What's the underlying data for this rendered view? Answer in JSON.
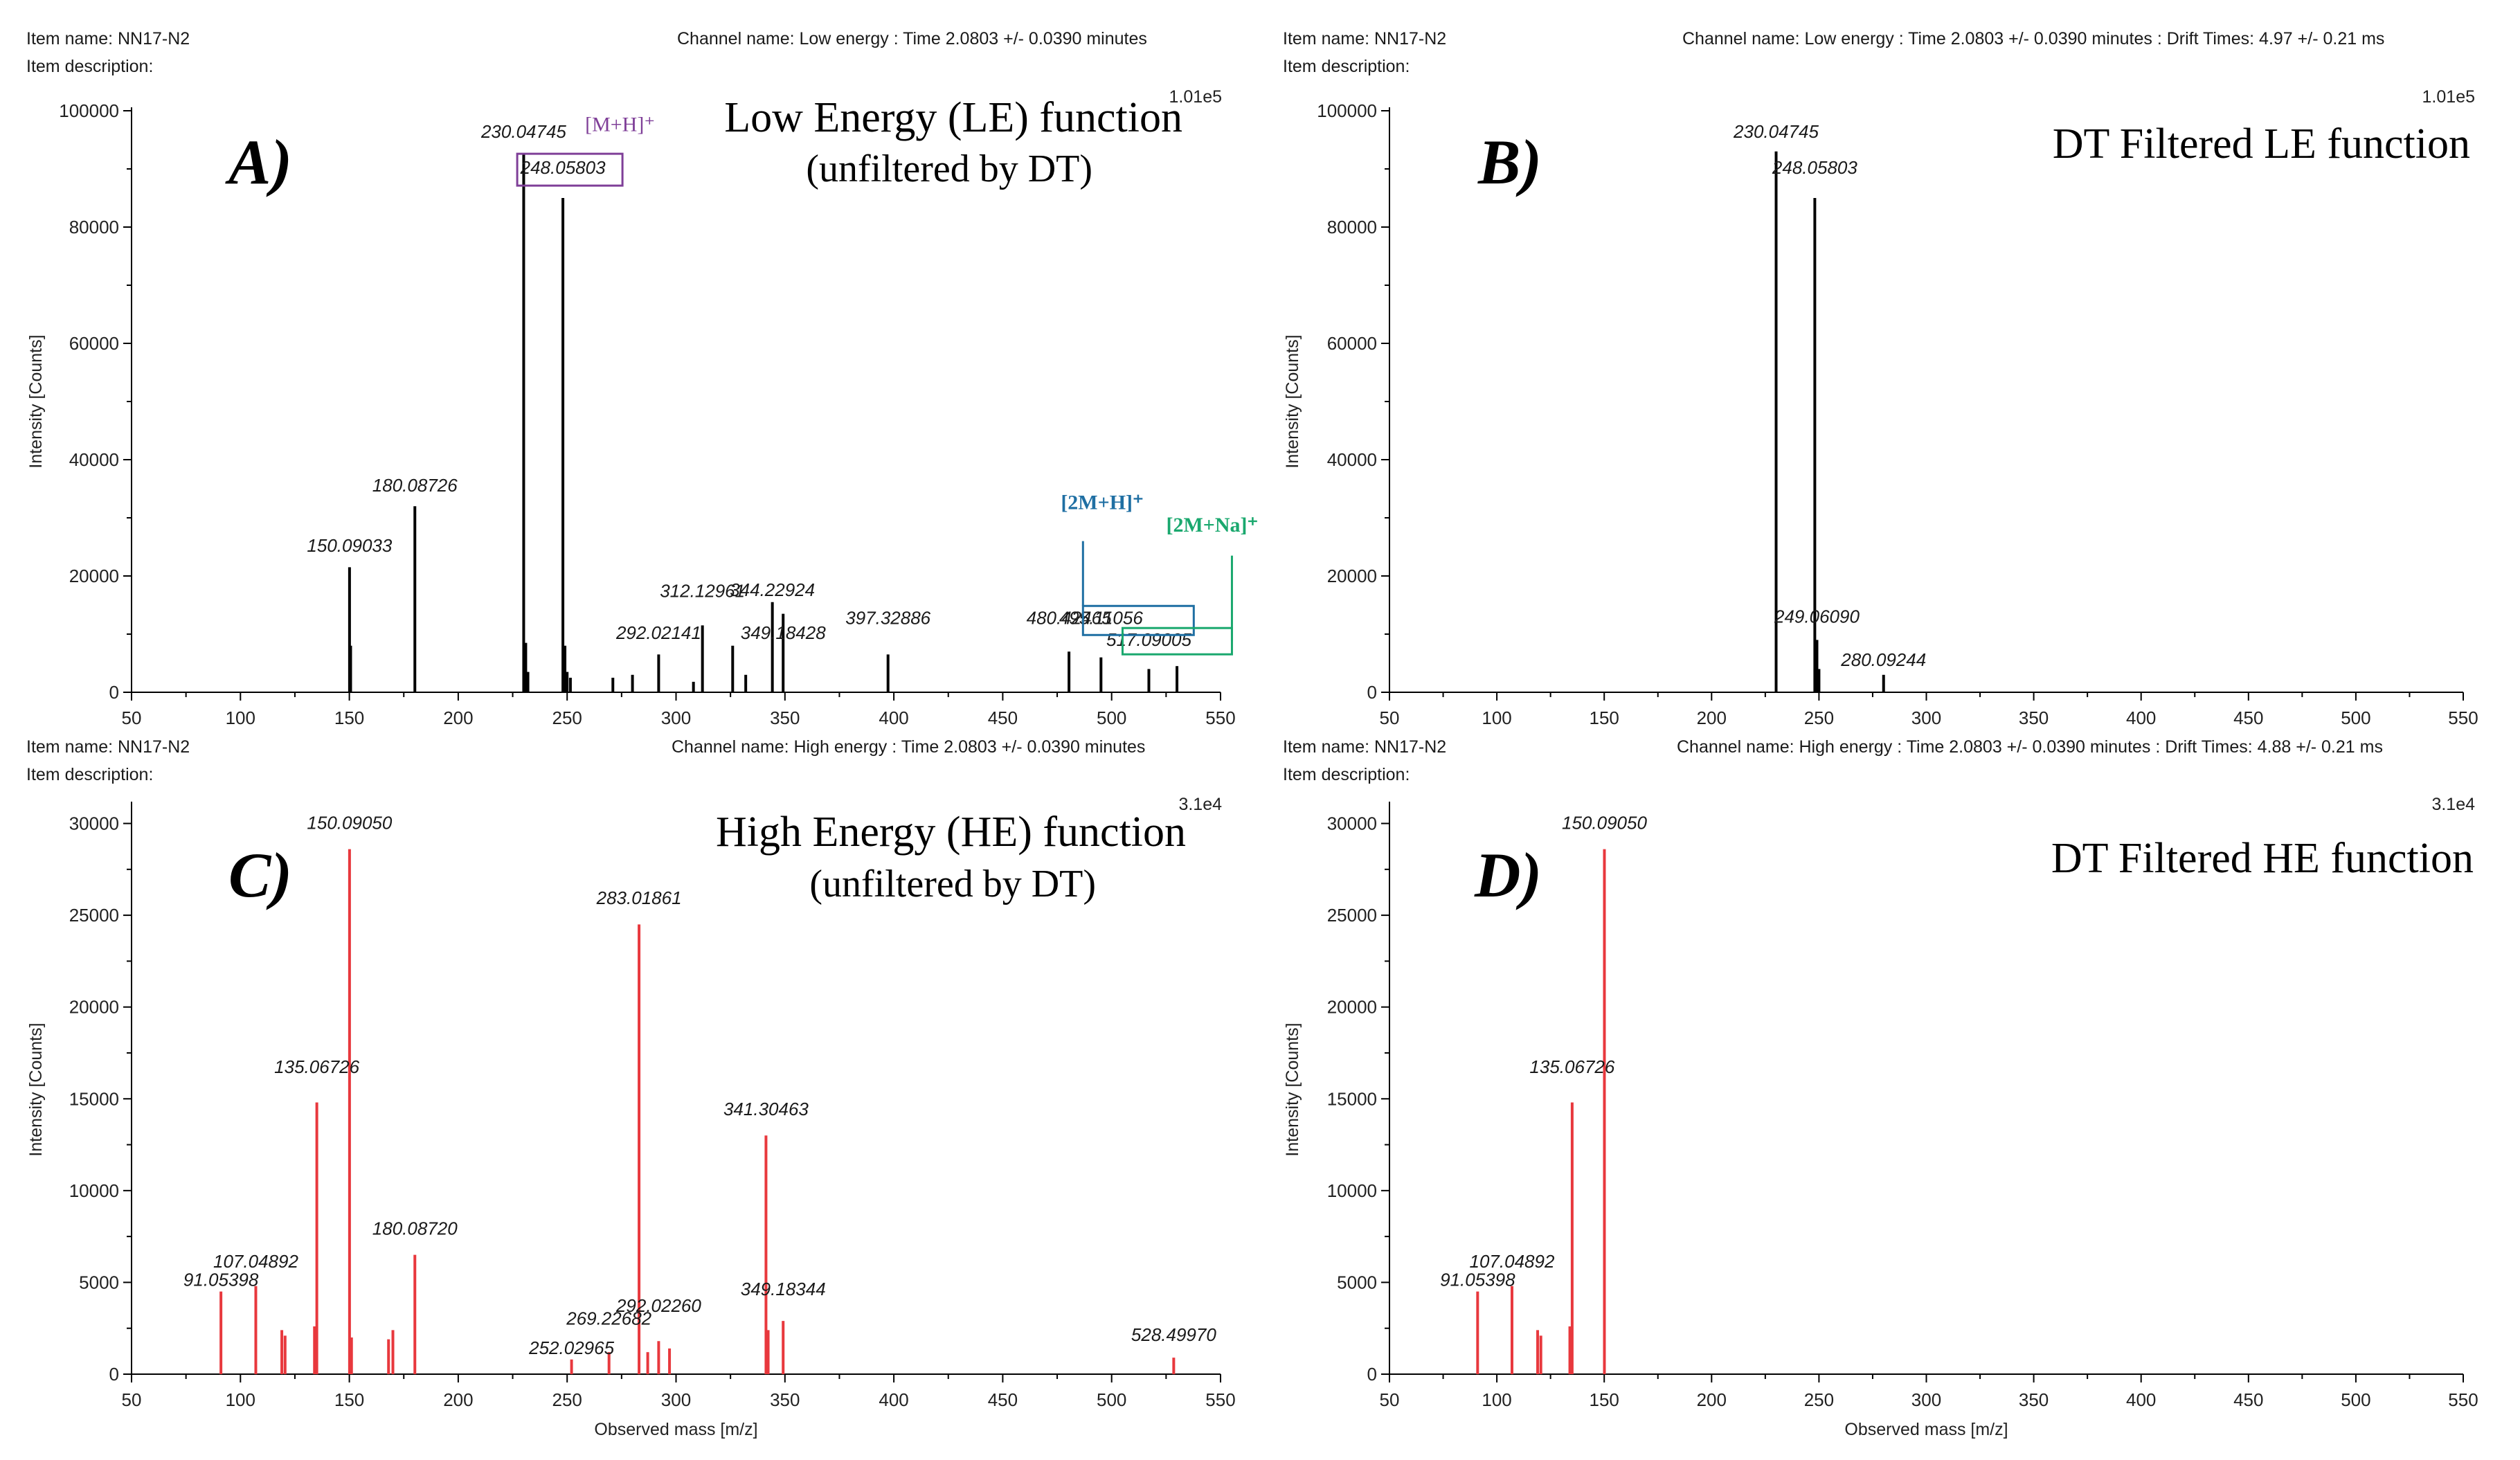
{
  "chart_data": [
    {
      "id": "A",
      "type": "bar",
      "panel_letter": "A)",
      "item_name": "Item name: NN17-N2",
      "item_description": "Item description:",
      "channel": "Channel name: Low energy : Time 2.0803 +/- 0.0390 minutes",
      "scale": "1.01e5",
      "title_line1": "Low Energy (LE) function",
      "title_line2": "(unfiltered by DT)",
      "ylabel": "Intensity [Counts]",
      "xlabel": "",
      "xlim": [
        50,
        550
      ],
      "ylim": [
        0,
        100000
      ],
      "xticks": [
        50,
        100,
        150,
        200,
        250,
        300,
        350,
        400,
        450,
        500,
        550
      ],
      "yticks": [
        0,
        20000,
        40000,
        60000,
        80000,
        100000
      ],
      "ytick_labels": [
        "0",
        "20000",
        "40000",
        "60000",
        "80000",
        "100000"
      ],
      "color": "#000000",
      "peaks": [
        [
          150.09,
          21500
        ],
        [
          150.6,
          8000
        ],
        [
          180.09,
          32000
        ],
        [
          230.05,
          92500
        ],
        [
          231.0,
          8500
        ],
        [
          232.0,
          3500
        ],
        [
          248.06,
          85000
        ],
        [
          249.0,
          8000
        ],
        [
          250.0,
          3500
        ],
        [
          251.5,
          2500
        ],
        [
          271,
          2500
        ],
        [
          280,
          3000
        ],
        [
          292.02,
          6500
        ],
        [
          308,
          1800
        ],
        [
          312.13,
          11500
        ],
        [
          326,
          8000
        ],
        [
          332,
          3000
        ],
        [
          344.23,
          15500
        ],
        [
          349.18,
          13500
        ],
        [
          397.33,
          6500
        ],
        [
          480.42,
          7000
        ],
        [
          495.11,
          6000
        ],
        [
          517.09,
          4000
        ],
        [
          530,
          4500
        ]
      ],
      "labels": [
        {
          "mz": 150.09,
          "text": "150.09033",
          "y": 23200
        },
        {
          "mz": 180.09,
          "text": "180.08726",
          "y": 33600
        },
        {
          "mz": 230.05,
          "text": "230.04745",
          "y": 94400
        },
        {
          "mz": 248.06,
          "text": "248.05803",
          "y": 88200
        },
        {
          "mz": 292.02,
          "text": "292.02141",
          "y": 8200
        },
        {
          "mz": 312.13,
          "text": "312.12961",
          "y": 15400
        },
        {
          "mz": 344.23,
          "text": "344.22924",
          "y": 15600
        },
        {
          "mz": 349.18,
          "text": "349.18428",
          "y": 8200
        },
        {
          "mz": 397.33,
          "text": "397.32886",
          "y": 10800
        },
        {
          "mz": 480.42,
          "text": "480.42465",
          "y": 10800
        },
        {
          "mz": 495.11,
          "text": "495.11056",
          "y": 10800
        },
        {
          "mz": 517.09,
          "text": "517.09005",
          "y": 7000
        }
      ],
      "annotations": [
        {
          "text": "[M+H]⁺",
          "color": "#7f3f98"
        },
        {
          "text": "[2M+H]⁺",
          "color": "#1f6fa3"
        },
        {
          "text": "[2M+Na]⁺",
          "color": "#1aa86e"
        }
      ]
    },
    {
      "id": "B",
      "type": "bar",
      "panel_letter": "B)",
      "item_name": "Item name: NN17-N2",
      "item_description": "Item description:",
      "channel": "Channel name: Low energy : Time 2.0803 +/- 0.0390 minutes : Drift Times: 4.97 +/- 0.21 ms",
      "scale": "1.01e5",
      "title_line1": "DT Filtered LE function",
      "title_line2": "",
      "ylabel": "Intensity [Counts]",
      "xlabel": "",
      "xlim": [
        50,
        550
      ],
      "ylim": [
        0,
        100000
      ],
      "xticks": [
        50,
        100,
        150,
        200,
        250,
        300,
        350,
        400,
        450,
        500,
        550
      ],
      "yticks": [
        0,
        20000,
        40000,
        60000,
        80000,
        100000
      ],
      "ytick_labels": [
        "0",
        "20000",
        "40000",
        "60000",
        "80000",
        "100000"
      ],
      "color": "#000000",
      "peaks": [
        [
          230.05,
          93000
        ],
        [
          248.06,
          85000
        ],
        [
          249.06,
          9000
        ],
        [
          250.0,
          4000
        ],
        [
          280.09,
          3000
        ]
      ],
      "labels": [
        {
          "mz": 230.05,
          "text": "230.04745",
          "y": 94400
        },
        {
          "mz": 248.06,
          "text": "248.05803",
          "y": 88200
        },
        {
          "mz": 249.06,
          "text": "249.06090",
          "y": 11000
        },
        {
          "mz": 280.09,
          "text": "280.09244",
          "y": 3600
        }
      ],
      "annotations": []
    },
    {
      "id": "C",
      "type": "bar",
      "panel_letter": "C)",
      "item_name": "Item name: NN17-N2",
      "item_description": "Item description:",
      "channel": "Channel name: High energy : Time 2.0803 +/- 0.0390 minutes",
      "scale": "3.1e4",
      "title_line1": "High Energy (HE) function",
      "title_line2": "(unfiltered by DT)",
      "ylabel": "Intensity [Counts]",
      "xlabel": "Observed mass [m/z]",
      "xlim": [
        50,
        550
      ],
      "ylim": [
        0,
        31000
      ],
      "xticks": [
        50,
        100,
        150,
        200,
        250,
        300,
        350,
        400,
        450,
        500,
        550
      ],
      "yticks": [
        0,
        5000,
        10000,
        15000,
        20000,
        25000,
        30000
      ],
      "ytick_labels": [
        "0",
        "5000",
        "10000",
        "15000",
        "20000",
        "25000",
        "30000"
      ],
      "color": "#e8383d",
      "peaks": [
        [
          91.05,
          4500
        ],
        [
          107.05,
          4800
        ],
        [
          119,
          2400
        ],
        [
          120.5,
          2100
        ],
        [
          134,
          2600
        ],
        [
          135.07,
          14800
        ],
        [
          150.09,
          28600
        ],
        [
          151,
          2000
        ],
        [
          168,
          1900
        ],
        [
          170,
          2400
        ],
        [
          180.09,
          6500
        ],
        [
          252.03,
          800
        ],
        [
          269.23,
          1200
        ],
        [
          283.02,
          24500
        ],
        [
          287,
          1200
        ],
        [
          292.02,
          1800
        ],
        [
          297,
          1400
        ],
        [
          341.3,
          13000
        ],
        [
          342.3,
          2400
        ],
        [
          349.18,
          2900
        ],
        [
          528.5,
          900
        ]
      ],
      "labels": [
        {
          "mz": 91.05,
          "text": "91.05398",
          "y": 4500
        },
        {
          "mz": 107.05,
          "text": "107.04892",
          "y": 5500
        },
        {
          "mz": 135.07,
          "text": "135.06726",
          "y": 16100
        },
        {
          "mz": 150.09,
          "text": "150.09050",
          "y": 29400
        },
        {
          "mz": 180.09,
          "text": "180.08720",
          "y": 7300
        },
        {
          "mz": 252.03,
          "text": "252.02965",
          "y": 800
        },
        {
          "mz": 269.23,
          "text": "269.22682",
          "y": 2400
        },
        {
          "mz": 283.02,
          "text": "283.01861",
          "y": 25300
        },
        {
          "mz": 292.02,
          "text": "292.02260",
          "y": 3100
        },
        {
          "mz": 341.3,
          "text": "341.30463",
          "y": 13800
        },
        {
          "mz": 349.18,
          "text": "349.18344",
          "y": 4000
        },
        {
          "mz": 528.5,
          "text": "528.49970",
          "y": 1500
        }
      ],
      "annotations": []
    },
    {
      "id": "D",
      "type": "bar",
      "panel_letter": "D)",
      "item_name": "Item name: NN17-N2",
      "item_description": "Item description:",
      "channel": "Channel name: High energy : Time 2.0803 +/- 0.0390 minutes : Drift Times: 4.88 +/- 0.21 ms",
      "scale": "3.1e4",
      "title_line1": "DT Filtered HE function",
      "title_line2": "",
      "ylabel": "Intensity [Counts]",
      "xlabel": "Observed mass [m/z]",
      "xlim": [
        50,
        550
      ],
      "ylim": [
        0,
        31000
      ],
      "xticks": [
        50,
        100,
        150,
        200,
        250,
        300,
        350,
        400,
        450,
        500,
        550
      ],
      "yticks": [
        0,
        5000,
        10000,
        15000,
        20000,
        25000,
        30000
      ],
      "ytick_labels": [
        "0",
        "5000",
        "10000",
        "15000",
        "20000",
        "25000",
        "30000"
      ],
      "color": "#e8383d",
      "peaks": [
        [
          91.05,
          4500
        ],
        [
          107.05,
          4800
        ],
        [
          119,
          2400
        ],
        [
          120.5,
          2100
        ],
        [
          134,
          2600
        ],
        [
          135.07,
          14800
        ],
        [
          150.09,
          28600
        ]
      ],
      "labels": [
        {
          "mz": 91.05,
          "text": "91.05398",
          "y": 4500
        },
        {
          "mz": 107.05,
          "text": "107.04892",
          "y": 5500
        },
        {
          "mz": 135.07,
          "text": "135.06726",
          "y": 16100
        },
        {
          "mz": 150.09,
          "text": "150.09050",
          "y": 29400
        }
      ],
      "annotations": []
    }
  ]
}
